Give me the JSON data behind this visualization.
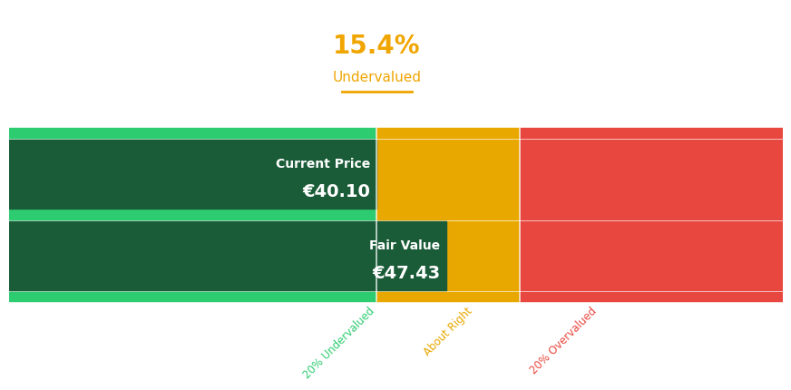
{
  "title_pct": "15.4%",
  "title_label": "Undervalued",
  "title_color": "#F0A500",
  "current_price": 40.1,
  "fair_value": 47.43,
  "current_price_label": "Current Price",
  "fair_value_label": "Fair Value",
  "currency_symbol": "€",
  "green_light": "#2ECC71",
  "green_dark": "#1A5C38",
  "orange": "#E8A800",
  "red": "#E8473F",
  "white": "#FFFFFF",
  "background": "#FFFFFF",
  "section_ends": [
    47.5,
    66.0,
    100.0
  ],
  "section_labels": [
    "20% Undervalued",
    "About Right",
    "20% Overvalued"
  ],
  "section_label_colors": [
    "#2ECC71",
    "#E8A800",
    "#E8473F"
  ],
  "current_price_pct": 47.5,
  "fair_value_pct": 56.5,
  "label_fontsize": 10,
  "value_fontsize": 14,
  "pct_fontsize": 20,
  "sub_fontsize": 11
}
